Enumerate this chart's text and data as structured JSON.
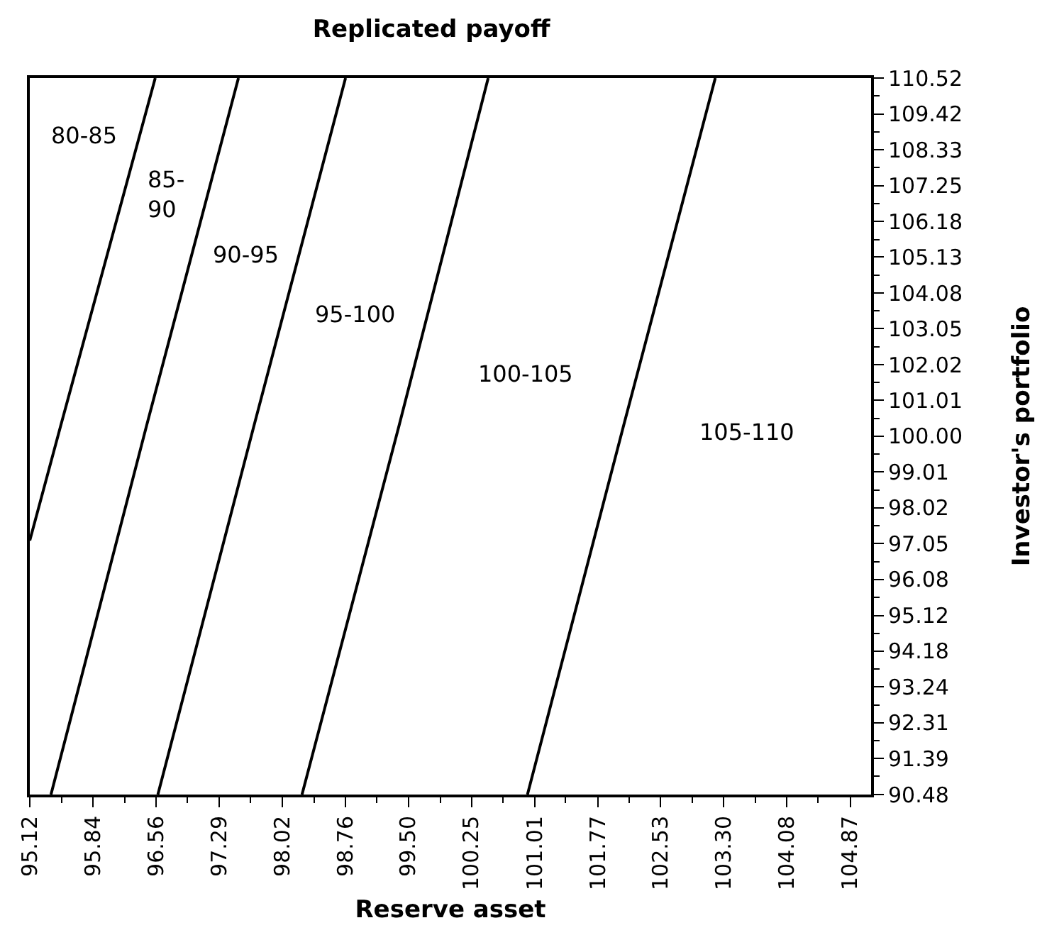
{
  "chart_data": {
    "type": "line",
    "title": "Replicated payoff",
    "xlabel": "Reserve asset",
    "ylabel": "Investor's portfolio",
    "log": "xy",
    "xlim": [
      95.12,
      105.13
    ],
    "ylim": [
      90.48,
      110.52
    ],
    "xticks": [
      95.12,
      {
        "value": 95.48,
        "label": null
      },
      95.84,
      {
        "value": 96.2,
        "label": null
      },
      96.56,
      {
        "value": 96.92,
        "label": null
      },
      97.29,
      {
        "value": 97.65,
        "label": null
      },
      98.02,
      {
        "value": 98.39,
        "label": null
      },
      98.76,
      {
        "value": 99.13,
        "label": null
      },
      {
        "value": 99.5,
        "label": "99.50"
      },
      {
        "value": 99.88,
        "label": null
      },
      100.25,
      {
        "value": 100.63,
        "label": null
      },
      101.01,
      {
        "value": 101.38,
        "label": null
      },
      101.77,
      {
        "value": 102.15,
        "label": null
      },
      102.53,
      {
        "value": 102.92,
        "label": null
      },
      {
        "value": 103.3,
        "label": "103.30"
      },
      {
        "value": 103.69,
        "label": null
      },
      104.08,
      {
        "value": 104.47,
        "label": null
      },
      104.87
    ],
    "yticks": [
      90.48,
      {
        "value": 90.94,
        "label": null
      },
      91.39,
      {
        "value": 91.85,
        "label": null
      },
      92.31,
      {
        "value": 92.77,
        "label": null
      },
      93.24,
      {
        "value": 93.71,
        "label": null
      },
      94.18,
      {
        "value": 94.65,
        "label": null
      },
      95.12,
      {
        "value": 95.6,
        "label": null
      },
      96.08,
      {
        "value": 96.56,
        "label": null
      },
      97.05,
      {
        "value": 97.53,
        "label": null
      },
      98.02,
      {
        "value": 98.51,
        "label": null
      },
      99.01,
      {
        "value": 99.5,
        "label": null
      },
      {
        "value": 100,
        "label": "100.00"
      },
      {
        "value": 100.5,
        "label": null
      },
      101.01,
      {
        "value": 101.51,
        "label": null
      },
      102.02,
      {
        "value": 102.53,
        "label": null
      },
      103.05,
      {
        "value": 103.56,
        "label": null
      },
      104.08,
      {
        "value": 104.6,
        "label": null
      },
      105.13,
      {
        "value": 105.65,
        "label": null
      },
      106.18,
      {
        "value": 106.72,
        "label": null
      },
      107.25,
      {
        "value": 107.79,
        "label": null
      },
      108.33,
      {
        "value": 108.87,
        "label": null
      },
      109.42,
      {
        "value": 109.97,
        "label": null
      },
      110.52
    ],
    "series": [
      {
        "color": "#000000",
        "x": [
          96.55,
          95.47,
          95.12
        ],
        "values": [
          110.52,
          100.29,
          97.13
        ]
      },
      {
        "color": "#000000",
        "x": [
          97.51,
          96.45,
          95.36
        ],
        "values": [
          110.52,
          100.29,
          90.48
        ]
      },
      {
        "color": "#000000",
        "x": [
          98.76,
          97.69,
          96.58
        ],
        "values": [
          110.52,
          100.29,
          90.48
        ]
      },
      {
        "color": "#000000",
        "x": [
          100.45,
          99.39,
          98.25
        ],
        "values": [
          110.52,
          100.29,
          90.48
        ]
      },
      {
        "color": "#000000",
        "x": [
          103.2,
          102.08,
          100.92
        ],
        "values": [
          110.52,
          100.29,
          90.48
        ]
      }
    ],
    "annotations": [
      "80-85",
      "85-90",
      "90-95",
      "95-100",
      "100-105",
      "105-110"
    ]
  }
}
